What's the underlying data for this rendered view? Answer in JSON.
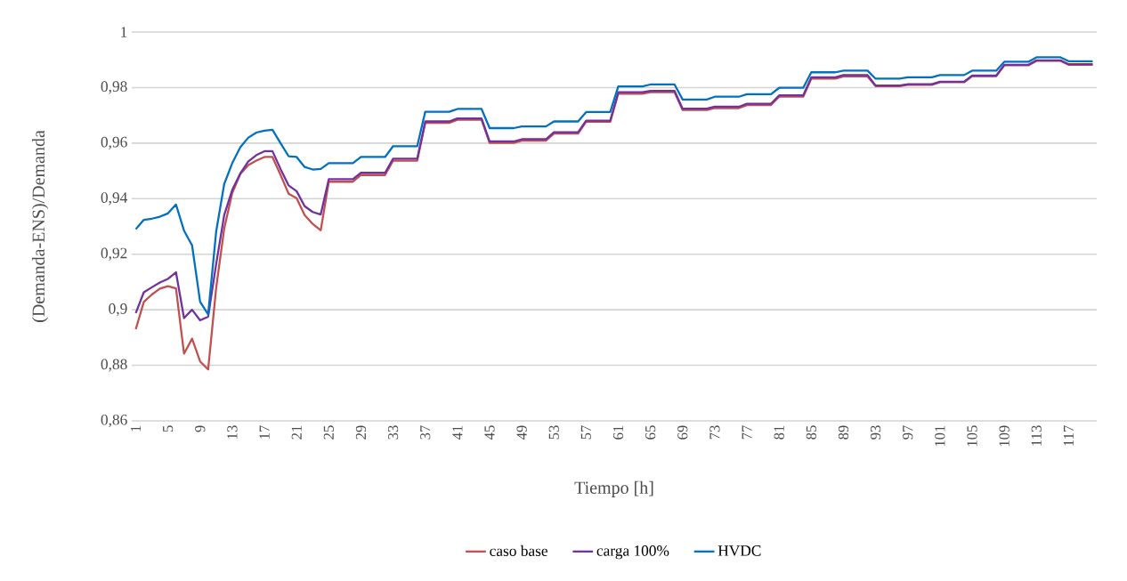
{
  "chart_data": {
    "type": "line",
    "xlabel": "Tiempo [h]",
    "ylabel": "(Demanda-ENS)/Demanda",
    "categories": [
      "1",
      null,
      null,
      null,
      "5",
      null,
      null,
      null,
      "9",
      null,
      null,
      null,
      "13",
      null,
      null,
      null,
      "17",
      null,
      null,
      null,
      "21",
      null,
      null,
      null,
      "25",
      null,
      null,
      null,
      "29",
      null,
      null,
      null,
      "33",
      null,
      null,
      null,
      "37",
      null,
      null,
      null,
      "41",
      null,
      null,
      null,
      "45",
      null,
      null,
      null,
      "49",
      null,
      null,
      null,
      "53",
      null,
      null,
      null,
      "57",
      null,
      null,
      null,
      "61",
      null,
      null,
      null,
      "65",
      null,
      null,
      null,
      "69",
      null,
      null,
      null,
      "73",
      null,
      null,
      null,
      "77",
      null,
      null,
      null,
      "81",
      null,
      null,
      null,
      "85",
      null,
      null,
      null,
      "89",
      null,
      null,
      null,
      "93",
      null,
      null,
      null,
      "97",
      null,
      null,
      null,
      "101",
      null,
      null,
      null,
      "105",
      null,
      null,
      null,
      "109",
      null,
      null,
      null,
      "113",
      null,
      null,
      null,
      "117",
      null,
      null,
      null
    ],
    "series": [
      {
        "name": "caso base",
        "color": "#c0504d",
        "values": [
          0.893,
          0.9028,
          0.9055,
          0.9076,
          0.9085,
          0.9077,
          0.8842,
          0.8896,
          0.8814,
          0.8785,
          0.9079,
          0.9293,
          0.9421,
          0.9489,
          0.9521,
          0.9537,
          0.955,
          0.955,
          0.9486,
          0.9418,
          0.9402,
          0.9341,
          0.9309,
          0.9286,
          0.9461,
          0.9461,
          0.9461,
          0.9461,
          0.9485,
          0.9485,
          0.9485,
          0.9485,
          0.9537,
          0.9537,
          0.9537,
          0.9537,
          0.9673,
          0.9673,
          0.9673,
          0.9673,
          0.9684,
          0.9684,
          0.9684,
          0.9684,
          0.9601,
          0.9601,
          0.9601,
          0.9601,
          0.9609,
          0.9609,
          0.9609,
          0.9609,
          0.9634,
          0.9634,
          0.9634,
          0.9634,
          0.9677,
          0.9677,
          0.9677,
          0.9677,
          0.9778,
          0.9778,
          0.9778,
          0.9778,
          0.9783,
          0.9783,
          0.9783,
          0.9783,
          0.9719,
          0.9719,
          0.9719,
          0.9719,
          0.9726,
          0.9726,
          0.9726,
          0.9726,
          0.9737,
          0.9737,
          0.9737,
          0.9737,
          0.9767,
          0.9767,
          0.9767,
          0.9767,
          0.9832,
          0.9832,
          0.9832,
          0.9832,
          0.984,
          0.984,
          0.984,
          0.984,
          0.9805,
          0.9805,
          0.9805,
          0.9805,
          0.981,
          0.981,
          0.981,
          0.981,
          0.9819,
          0.9819,
          0.9819,
          0.9819,
          0.9841,
          0.9841,
          0.9841,
          0.9841,
          0.988,
          0.988,
          0.988,
          0.988,
          0.9896,
          0.9896,
          0.9896,
          0.9896,
          0.9882,
          0.9882,
          0.9882,
          0.9882
        ]
      },
      {
        "name": "carga 100%",
        "color": "#7030a0",
        "values": [
          0.8988,
          0.9063,
          0.9081,
          0.9098,
          0.9111,
          0.9135,
          0.897,
          0.9,
          0.8962,
          0.8975,
          0.9165,
          0.9341,
          0.9432,
          0.9491,
          0.9534,
          0.9557,
          0.9571,
          0.9571,
          0.9507,
          0.9448,
          0.9427,
          0.9373,
          0.9352,
          0.9343,
          0.947,
          0.947,
          0.947,
          0.947,
          0.9493,
          0.9493,
          0.9493,
          0.9493,
          0.9544,
          0.9544,
          0.9544,
          0.9544,
          0.9678,
          0.9678,
          0.9678,
          0.9678,
          0.9689,
          0.9689,
          0.9689,
          0.9689,
          0.9606,
          0.9606,
          0.9606,
          0.9606,
          0.9614,
          0.9614,
          0.9614,
          0.9614,
          0.9639,
          0.9639,
          0.9639,
          0.9639,
          0.9681,
          0.9681,
          0.9681,
          0.9681,
          0.9783,
          0.9783,
          0.9783,
          0.9783,
          0.9788,
          0.9788,
          0.9788,
          0.9788,
          0.9724,
          0.9724,
          0.9724,
          0.9724,
          0.9731,
          0.9731,
          0.9731,
          0.9731,
          0.9742,
          0.9742,
          0.9742,
          0.9742,
          0.9772,
          0.9772,
          0.9772,
          0.9772,
          0.9837,
          0.9837,
          0.9837,
          0.9837,
          0.9845,
          0.9845,
          0.9845,
          0.9845,
          0.9807,
          0.9807,
          0.9807,
          0.9807,
          0.9812,
          0.9812,
          0.9812,
          0.9812,
          0.9821,
          0.9821,
          0.9821,
          0.9821,
          0.9843,
          0.9843,
          0.9843,
          0.9843,
          0.9882,
          0.9882,
          0.9882,
          0.9882,
          0.9898,
          0.9898,
          0.9898,
          0.9898,
          0.9884,
          0.9884,
          0.9884,
          0.9884
        ]
      },
      {
        "name": "HVDC",
        "color": "#0070c0",
        "values": [
          0.929,
          0.9324,
          0.9328,
          0.9335,
          0.9347,
          0.9379,
          0.9285,
          0.9232,
          0.9029,
          0.8983,
          0.9282,
          0.9453,
          0.9528,
          0.9585,
          0.962,
          0.9638,
          0.9645,
          0.9648,
          0.96,
          0.9553,
          0.955,
          0.9514,
          0.9505,
          0.9507,
          0.9528,
          0.9528,
          0.9528,
          0.9528,
          0.955,
          0.955,
          0.955,
          0.955,
          0.9589,
          0.9589,
          0.9589,
          0.9589,
          0.9713,
          0.9713,
          0.9713,
          0.9713,
          0.9723,
          0.9723,
          0.9723,
          0.9723,
          0.9654,
          0.9654,
          0.9654,
          0.9654,
          0.966,
          0.966,
          0.966,
          0.966,
          0.9678,
          0.9678,
          0.9678,
          0.9678,
          0.9712,
          0.9712,
          0.9712,
          0.9712,
          0.9804,
          0.9804,
          0.9804,
          0.9804,
          0.9811,
          0.9811,
          0.9811,
          0.9811,
          0.9757,
          0.9757,
          0.9757,
          0.9757,
          0.9767,
          0.9767,
          0.9767,
          0.9767,
          0.9776,
          0.9776,
          0.9776,
          0.9776,
          0.9799,
          0.9799,
          0.9799,
          0.9799,
          0.9855,
          0.9855,
          0.9855,
          0.9855,
          0.9861,
          0.9861,
          0.9861,
          0.9861,
          0.9832,
          0.9832,
          0.9832,
          0.9832,
          0.9837,
          0.9837,
          0.9837,
          0.9837,
          0.9845,
          0.9845,
          0.9845,
          0.9845,
          0.9861,
          0.9861,
          0.9861,
          0.9861,
          0.9893,
          0.9893,
          0.9893,
          0.9893,
          0.9909,
          0.9909,
          0.9909,
          0.9909,
          0.9895,
          0.9895,
          0.9895,
          0.9895
        ]
      }
    ],
    "ylim": [
      0.86,
      1
    ],
    "yticks": [
      {
        "value": 0.86,
        "label": "0,86"
      },
      {
        "value": 0.88,
        "label": "0,88"
      },
      {
        "value": 0.9,
        "label": "0,9"
      },
      {
        "value": 0.92,
        "label": "0,92"
      },
      {
        "value": 0.94,
        "label": "0,94"
      },
      {
        "value": 0.96,
        "label": "0,96"
      },
      {
        "value": 0.98,
        "label": "0,98"
      },
      1
    ],
    "grid": "y",
    "legend": "bottom"
  }
}
